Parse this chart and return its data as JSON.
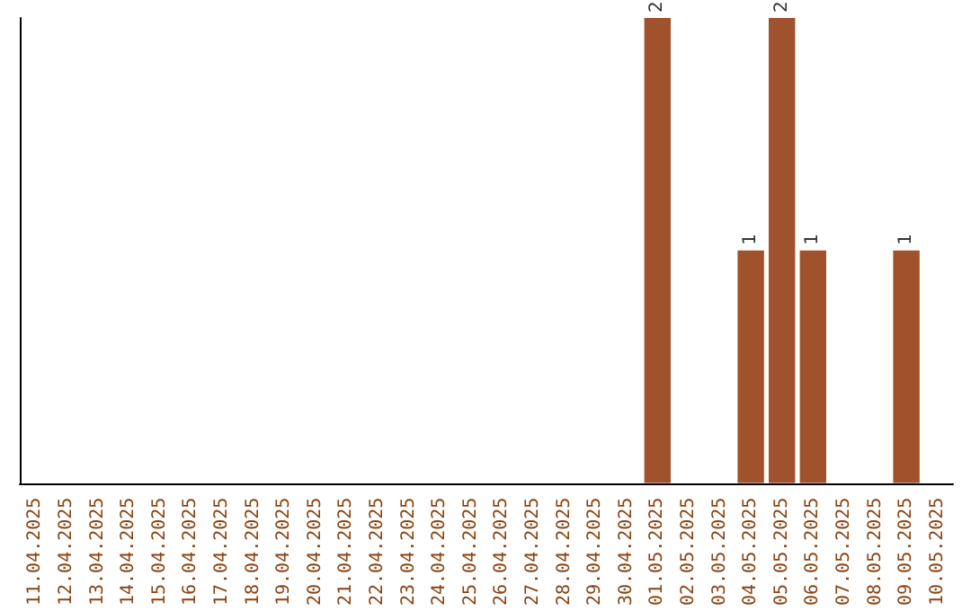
{
  "chart_data": {
    "type": "bar",
    "categories": [
      "11.04.2025",
      "12.04.2025",
      "13.04.2025",
      "14.04.2025",
      "15.04.2025",
      "16.04.2025",
      "17.04.2025",
      "18.04.2025",
      "19.04.2025",
      "20.04.2025",
      "21.04.2025",
      "22.04.2025",
      "23.04.2025",
      "24.04.2025",
      "25.04.2025",
      "26.04.2025",
      "27.04.2025",
      "28.04.2025",
      "29.04.2025",
      "30.04.2025",
      "01.05.2025",
      "02.05.2025",
      "03.05.2025",
      "04.05.2025",
      "05.05.2025",
      "06.05.2025",
      "07.05.2025",
      "08.05.2025",
      "09.05.2025",
      "10.05.2025"
    ],
    "values": [
      null,
      null,
      null,
      null,
      null,
      null,
      null,
      null,
      null,
      null,
      null,
      null,
      null,
      null,
      null,
      null,
      null,
      null,
      null,
      null,
      2,
      null,
      null,
      1,
      2,
      1,
      null,
      null,
      1,
      null
    ],
    "value_labels": [
      null,
      null,
      null,
      null,
      null,
      null,
      null,
      null,
      null,
      null,
      null,
      null,
      null,
      null,
      null,
      null,
      null,
      null,
      null,
      null,
      "2",
      null,
      null,
      "1",
      "2",
      "1",
      null,
      null,
      "1",
      null
    ],
    "color": "#a0522d",
    "tick_labels": "x"
  }
}
